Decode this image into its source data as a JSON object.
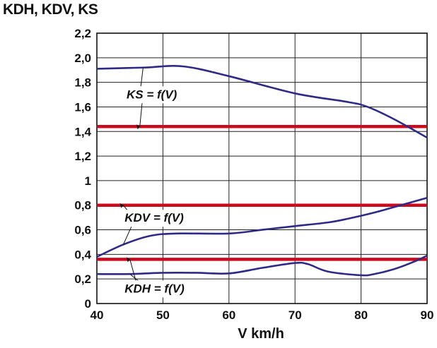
{
  "chart_data": {
    "type": "line",
    "ylabel": "KDH, KDV, KS",
    "xlabel": "V  km/h",
    "xlim": [
      40,
      90
    ],
    "ylim": [
      0,
      2.2
    ],
    "x_ticks": [
      "40",
      "50",
      "60",
      "70",
      "80",
      "90"
    ],
    "y_ticks": [
      "0",
      "0,2",
      "0,4",
      "0,6",
      "0,8",
      "1",
      "1,2",
      "1,4",
      "1,6",
      "1,8",
      "2,0",
      "2,2"
    ],
    "grid": true,
    "series": [
      {
        "name": "KS = f(V)",
        "color": "#2e2a86",
        "x": [
          40,
          47,
          53,
          60,
          70,
          78,
          81,
          85,
          90
        ],
        "y": [
          1.91,
          1.92,
          1.93,
          1.85,
          1.71,
          1.64,
          1.6,
          1.5,
          1.35
        ]
      },
      {
        "name": "KDV = f(V)",
        "color": "#2e2a86",
        "x": [
          40,
          44,
          48,
          52,
          60,
          65,
          70,
          75,
          78,
          82,
          86,
          90
        ],
        "y": [
          0.38,
          0.48,
          0.55,
          0.57,
          0.57,
          0.6,
          0.63,
          0.66,
          0.69,
          0.74,
          0.8,
          0.86
        ]
      },
      {
        "name": "KDH = f(V)",
        "color": "#2e2a86",
        "x": [
          40,
          45,
          50,
          55,
          60,
          65,
          70,
          72,
          75,
          80,
          82,
          85,
          88,
          90
        ],
        "y": [
          0.24,
          0.24,
          0.25,
          0.25,
          0.245,
          0.29,
          0.33,
          0.32,
          0.26,
          0.23,
          0.24,
          0.28,
          0.34,
          0.39
        ]
      }
    ],
    "reference_lines": [
      {
        "y": 1.44,
        "color": "#cc0a1e"
      },
      {
        "y": 0.8,
        "color": "#cc0a1e"
      },
      {
        "y": 0.36,
        "color": "#cc0a1e"
      }
    ],
    "annotations": [
      {
        "text": "KS = f(V)",
        "x": 44.5,
        "y": 1.67,
        "arrow_to": [
          47,
          1.92
        ],
        "arrow_to2": [
          46.5,
          1.44
        ]
      },
      {
        "text": "KDV = f(V)",
        "x": 44.2,
        "y": 0.665,
        "arrow_to": [
          44,
          0.48
        ],
        "arrow_to2": [
          44,
          0.8
        ]
      },
      {
        "text": "KDH = f(V)",
        "x": 44.2,
        "y": 0.09,
        "arrow_to": [
          45,
          0.24
        ],
        "arrow_to2": [
          45,
          0.36
        ]
      }
    ]
  }
}
